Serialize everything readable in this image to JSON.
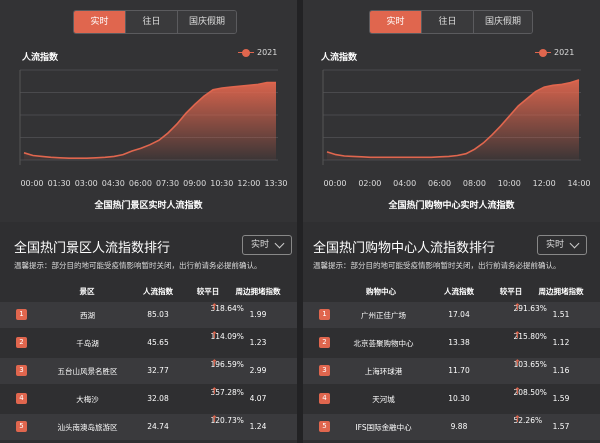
{
  "tabs": [
    "实时",
    "往日",
    "国庆假期"
  ],
  "left": {
    "chart": {
      "title": "人流指数",
      "legend": "2021",
      "caption": "全国热门景区实时人流指数",
      "x_labels": [
        "00:00",
        "01:30",
        "03:00",
        "04:30",
        "06:00",
        "07:30",
        "09:00",
        "10:30",
        "12:00",
        "13:30"
      ]
    },
    "rank": {
      "title": "全国热门景区人流指数排行",
      "dropdown": "实时",
      "notice": "温馨提示：部分目的地可能受疫情影响暂时关闭，出行前请务必提前确认。",
      "headers": [
        "景区",
        "人流指数",
        "较平日",
        "周边拥堵指数"
      ],
      "rows": [
        {
          "rank": "1",
          "name": "西湖",
          "index": "85.03",
          "pct": "318.64%",
          "jam": "1.99"
        },
        {
          "rank": "2",
          "name": "千岛湖",
          "index": "45.65",
          "pct": "114.09%",
          "jam": "1.23"
        },
        {
          "rank": "3",
          "name": "五台山风景名胜区",
          "index": "32.77",
          "pct": "196.59%",
          "jam": "2.99"
        },
        {
          "rank": "4",
          "name": "大梅沙",
          "index": "32.08",
          "pct": "357.28%",
          "jam": "4.07"
        },
        {
          "rank": "5",
          "name": "汕头南澳岛旅游区",
          "index": "24.74",
          "pct": "120.73%",
          "jam": "1.24"
        }
      ]
    }
  },
  "right": {
    "chart": {
      "title": "人流指数",
      "legend": "2021",
      "caption": "全国热门购物中心实时人流指数",
      "x_labels": [
        "00:00",
        "02:00",
        "04:00",
        "06:00",
        "08:00",
        "10:00",
        "12:00",
        "14:00"
      ]
    },
    "rank": {
      "title": "全国热门购物中心人流指数排行",
      "dropdown": "实时",
      "notice": "温馨提示：部分目的地可能受疫情影响暂时关闭，出行前请务必提前确认。",
      "headers": [
        "购物中心",
        "人流指数",
        "较平日",
        "周边拥堵指数"
      ],
      "rows": [
        {
          "rank": "1",
          "name": "广州正佳广场",
          "index": "17.04",
          "pct": "291.63%",
          "jam": "1.51"
        },
        {
          "rank": "2",
          "name": "北京荟聚购物中心",
          "index": "13.38",
          "pct": "215.80%",
          "jam": "1.12"
        },
        {
          "rank": "3",
          "name": "上海环球港",
          "index": "11.70",
          "pct": "103.65%",
          "jam": "1.16"
        },
        {
          "rank": "4",
          "name": "天河城",
          "index": "10.30",
          "pct": "208.50%",
          "jam": "1.59"
        },
        {
          "rank": "5",
          "name": "IFS国际金融中心",
          "index": "9.88",
          "pct": "52.26%",
          "jam": "1.57"
        }
      ]
    }
  },
  "colors": {
    "accent": "#e0664e",
    "bg": "#2f2f31"
  },
  "chart_data": [
    {
      "type": "area",
      "x": [
        "00:00",
        "00:30",
        "01:00",
        "01:30",
        "02:00",
        "02:30",
        "03:00",
        "03:30",
        "04:00",
        "04:30",
        "05:00",
        "05:30",
        "06:00",
        "06:30",
        "07:00",
        "07:30",
        "08:00",
        "08:30",
        "09:00",
        "09:30",
        "10:00",
        "10:30",
        "11:00",
        "11:30",
        "12:00",
        "12:30",
        "13:00",
        "13:30",
        "14:00"
      ],
      "series": [
        {
          "name": "2021",
          "values": [
            8,
            5,
            4,
            3,
            2.5,
            2,
            2,
            2,
            2.5,
            3,
            4,
            6,
            10,
            13,
            17,
            22,
            30,
            40,
            52,
            62,
            71,
            78,
            80,
            81,
            82,
            83,
            84,
            86,
            86
          ]
        }
      ],
      "ylim": [
        0,
        100
      ]
    },
    {
      "type": "area",
      "x": [
        "00:00",
        "00:30",
        "01:00",
        "01:30",
        "02:00",
        "02:30",
        "03:00",
        "03:30",
        "04:00",
        "04:30",
        "05:00",
        "05:30",
        "06:00",
        "06:30",
        "07:00",
        "07:30",
        "08:00",
        "08:30",
        "09:00",
        "09:30",
        "10:00",
        "10:30",
        "11:00",
        "11:30",
        "12:00",
        "12:30",
        "13:00",
        "13:30",
        "14:00",
        "14:30"
      ],
      "series": [
        {
          "name": "2021",
          "values": [
            9,
            6,
            4.5,
            4,
            3.5,
            3,
            3,
            3,
            3,
            3,
            3,
            3,
            3,
            3.5,
            4,
            5,
            7,
            12,
            19,
            28,
            38,
            49,
            60,
            68,
            76,
            81,
            83,
            84,
            86,
            89
          ]
        }
      ],
      "ylim": [
        0,
        100
      ]
    }
  ]
}
